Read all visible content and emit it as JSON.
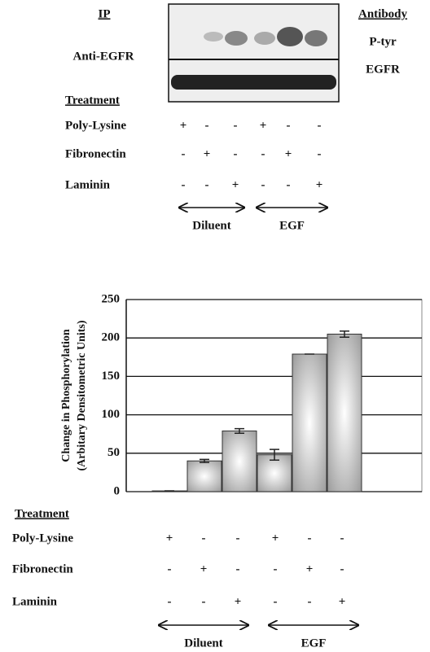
{
  "top_panel": {
    "ip_label": "IP",
    "ip_target": "Anti-EGFR",
    "antibody_label": "Antibody",
    "antibodies": [
      "P-tyr",
      "EGFR"
    ]
  },
  "top_treatment": {
    "title": "Treatment",
    "rows": [
      {
        "name": "Poly-Lysine",
        "marks": [
          "+",
          "-",
          "-",
          "+",
          "-",
          "-"
        ]
      },
      {
        "name": "Fibronectin",
        "marks": [
          "-",
          "+",
          "-",
          "-",
          "+",
          "-"
        ]
      },
      {
        "name": "Laminin",
        "marks": [
          "-",
          "-",
          "+",
          "-",
          "-",
          "+"
        ]
      }
    ],
    "groups": [
      "Diluent",
      "EGF"
    ]
  },
  "chart_data": {
    "type": "bar",
    "y_label": [
      "Change in Phosphorylation",
      "(Arbitary Densitometric Units)"
    ],
    "categories": [
      null,
      null,
      null,
      null,
      null,
      null
    ],
    "values": [
      1,
      40,
      79,
      48,
      179,
      205
    ],
    "errors": [
      0,
      2,
      3,
      7,
      0,
      4
    ],
    "color": "#9a9a9a",
    "ylim": [
      0,
      250
    ],
    "yticks": [
      0,
      50,
      100,
      150,
      200,
      250
    ],
    "grid": true
  },
  "bottom_treatment": {
    "title": "Treatment",
    "rows": [
      {
        "name": "Poly-Lysine",
        "marks": [
          "+",
          "-",
          "-",
          "+",
          "-",
          "-"
        ]
      },
      {
        "name": "Fibronectin",
        "marks": [
          "-",
          "+",
          "-",
          "-",
          "+",
          "-"
        ]
      },
      {
        "name": "Laminin",
        "marks": [
          "-",
          "-",
          "+",
          "-",
          "-",
          "+"
        ]
      }
    ],
    "groups": [
      "Diluent",
      "EGF"
    ]
  }
}
